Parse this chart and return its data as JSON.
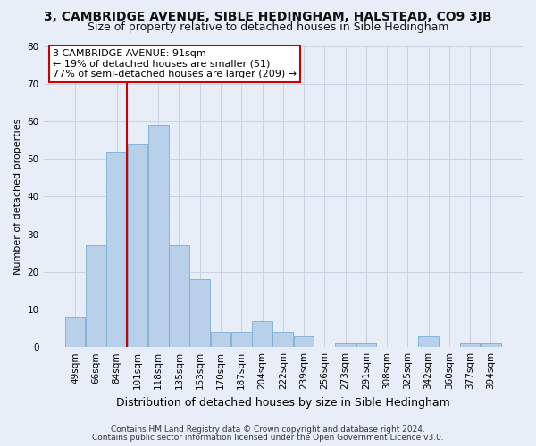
{
  "title": "3, CAMBRIDGE AVENUE, SIBLE HEDINGHAM, HALSTEAD, CO9 3JB",
  "subtitle": "Size of property relative to detached houses in Sible Hedingham",
  "xlabel": "Distribution of detached houses by size in Sible Hedingham",
  "ylabel": "Number of detached properties",
  "categories": [
    "49sqm",
    "66sqm",
    "84sqm",
    "101sqm",
    "118sqm",
    "135sqm",
    "153sqm",
    "170sqm",
    "187sqm",
    "204sqm",
    "222sqm",
    "239sqm",
    "256sqm",
    "273sqm",
    "291sqm",
    "308sqm",
    "325sqm",
    "342sqm",
    "360sqm",
    "377sqm",
    "394sqm"
  ],
  "values": [
    8,
    27,
    52,
    54,
    59,
    27,
    18,
    4,
    4,
    7,
    4,
    3,
    0,
    1,
    1,
    0,
    0,
    3,
    0,
    1,
    1
  ],
  "bar_color": "#b8d0ea",
  "bar_edge_color": "#7aadd4",
  "vline_color": "#cc0000",
  "vline_x_index": 2,
  "annotation_text": "3 CAMBRIDGE AVENUE: 91sqm\n← 19% of detached houses are smaller (51)\n77% of semi-detached houses are larger (209) →",
  "annotation_box_facecolor": "#ffffff",
  "annotation_box_edgecolor": "#cc0000",
  "ylim": [
    0,
    80
  ],
  "yticks": [
    0,
    10,
    20,
    30,
    40,
    50,
    60,
    70,
    80
  ],
  "grid_color": "#c8d4e4",
  "bg_color": "#e8eef8",
  "footer1": "Contains HM Land Registry data © Crown copyright and database right 2024.",
  "footer2": "Contains public sector information licensed under the Open Government Licence v3.0.",
  "title_fontsize": 10,
  "subtitle_fontsize": 9,
  "xlabel_fontsize": 9,
  "ylabel_fontsize": 8,
  "tick_fontsize": 7.5,
  "annot_fontsize": 8,
  "footer_fontsize": 6.5
}
